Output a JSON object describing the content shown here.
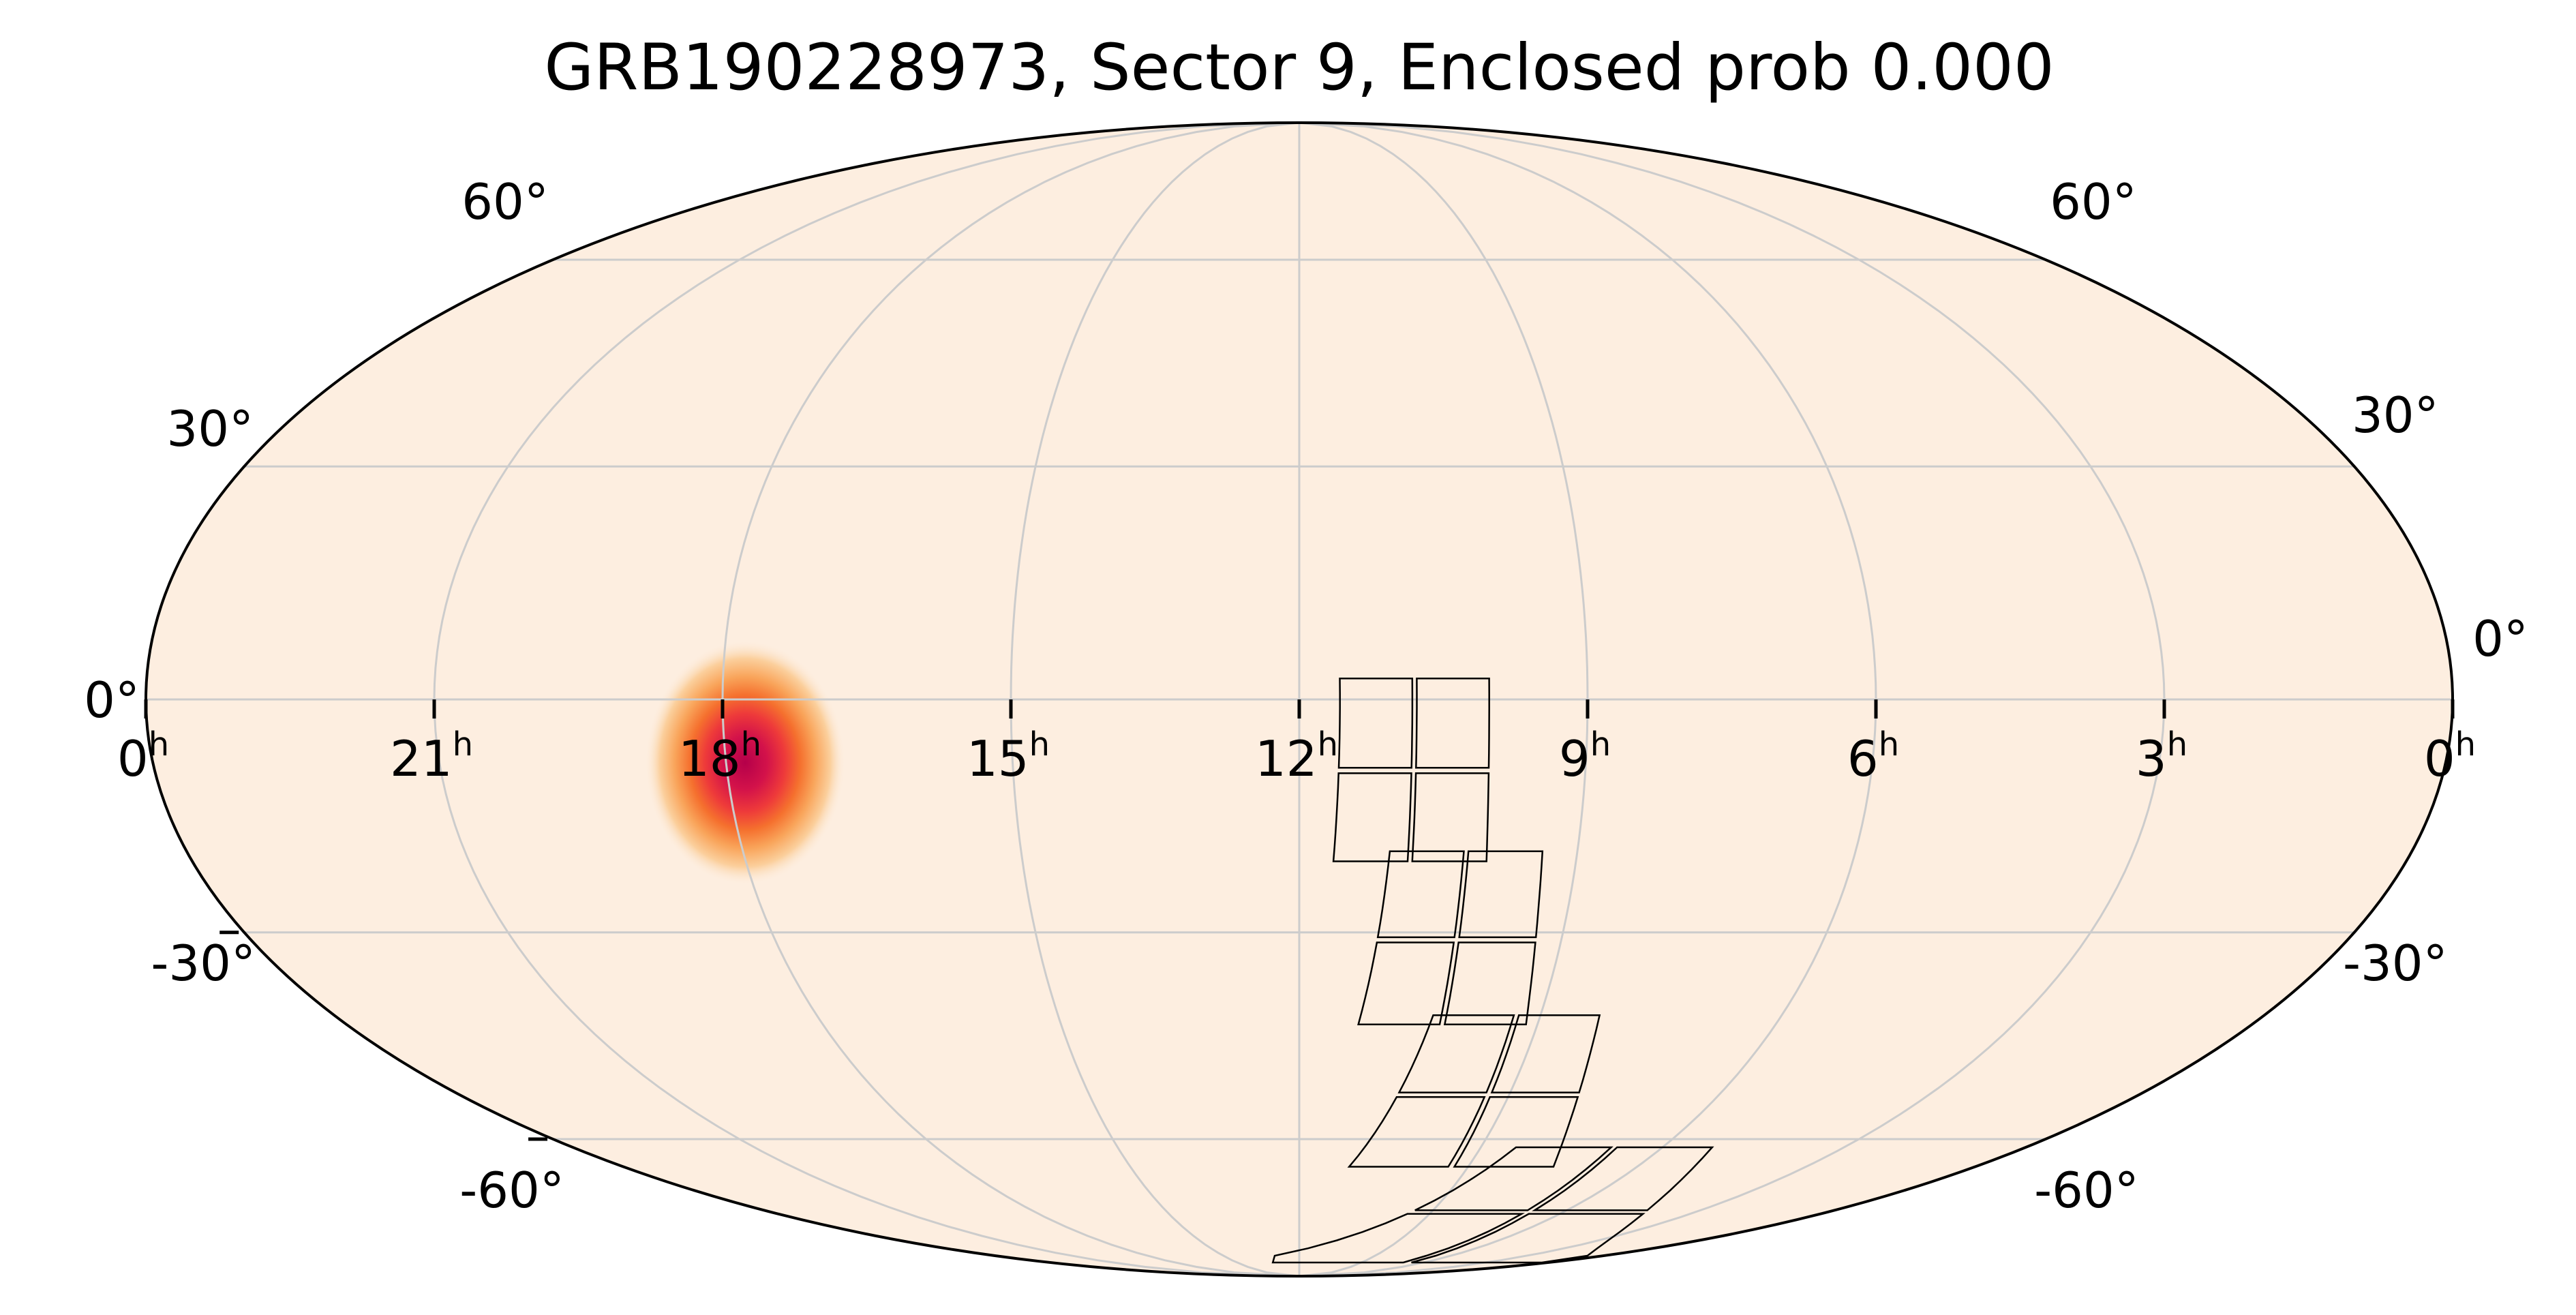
{
  "chart_data": {
    "type": "heatmap",
    "projection": "mollweide",
    "title": "GRB190228973, Sector 9, Enclosed prob 0.000",
    "ra_ticks": [
      {
        "hours": 24,
        "label": "0",
        "unit": "h"
      },
      {
        "hours": 21,
        "label": "21",
        "unit": "h"
      },
      {
        "hours": 18,
        "label": "18",
        "unit": "h"
      },
      {
        "hours": 15,
        "label": "15",
        "unit": "h"
      },
      {
        "hours": 12,
        "label": "12",
        "unit": "h"
      },
      {
        "hours": 9,
        "label": "9",
        "unit": "h"
      },
      {
        "hours": 6,
        "label": "6",
        "unit": "h"
      },
      {
        "hours": 3,
        "label": "3",
        "unit": "h"
      },
      {
        "hours": 0,
        "label": "0",
        "unit": "h"
      }
    ],
    "dec_ticks": [
      {
        "deg": 60,
        "label": "60°"
      },
      {
        "deg": 30,
        "label": "30°"
      },
      {
        "deg": 0,
        "label": "0°"
      },
      {
        "deg": -30,
        "label": "-30°"
      },
      {
        "deg": -60,
        "label": "-60°"
      }
    ],
    "grid": true,
    "ra_increases": "left",
    "colors": {
      "background": "#fdeee0",
      "grid": "#cccccc",
      "outline": "#000000",
      "footprint": "#000000"
    },
    "probability_peak": {
      "ra_hours": 17.8,
      "dec_deg": -8,
      "sigma_deg": 5
    },
    "footprint": {
      "sector": 9,
      "cameras": [
        {
          "id": 1,
          "center_ra_hours": 10.8,
          "center_dec_deg": -9
        },
        {
          "id": 2,
          "center_ra_hours": 10.2,
          "center_dec_deg": -31
        },
        {
          "id": 3,
          "center_ra_hours": 9.3,
          "center_dec_deg": -53
        },
        {
          "id": 4,
          "center_ra_hours": 6.8,
          "center_dec_deg": -73
        }
      ]
    }
  }
}
